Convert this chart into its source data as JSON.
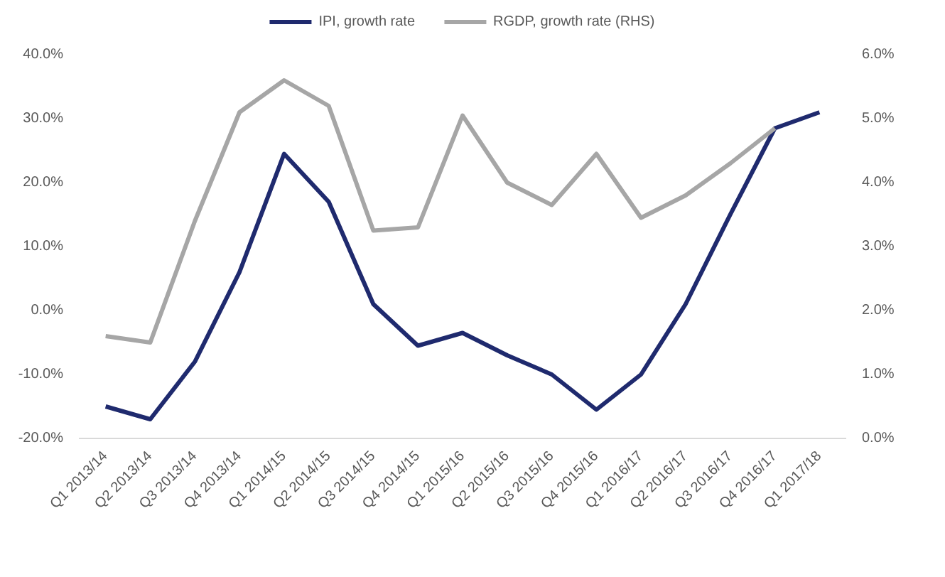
{
  "chart_data": {
    "type": "line",
    "categories": [
      "Q1 2013/14",
      "Q2 2013/14",
      "Q3 2013/14",
      "Q4 2013/14",
      "Q1 2014/15",
      "Q2 2014/15",
      "Q3 2014/15",
      "Q4 2014/15",
      "Q1 2015/16",
      "Q2 2015/16",
      "Q3 2015/16",
      "Q4 2015/16",
      "Q1 2016/17",
      "Q2 2016/17",
      "Q3 2016/17",
      "Q4 2016/17",
      "Q1 2017/18"
    ],
    "series": [
      {
        "name": "IPI, growth rate",
        "color": "#1f2a6e",
        "values": [
          -15,
          -17,
          -8,
          6,
          24.5,
          17,
          1,
          -5.5,
          -3.5,
          -7,
          -10,
          -15.5,
          -10,
          1,
          15,
          28.5,
          31
        ]
      },
      {
        "name": "RGDP, growth rate (RHS)",
        "color": "#a6a6a6",
        "axis": "y2",
        "values": [
          1.6,
          1.5,
          3.4,
          5.1,
          5.6,
          5.2,
          3.25,
          3.3,
          5.05,
          4.0,
          3.65,
          4.45,
          3.45,
          3.8,
          4.3,
          4.85,
          null
        ]
      }
    ],
    "ylim": [
      -20,
      40
    ],
    "yticks": [
      {
        "value": -20,
        "label": "-20.0%"
      },
      {
        "value": -10,
        "label": "-10.0%"
      },
      {
        "value": 0,
        "label": "0.0%"
      },
      {
        "value": 10,
        "label": "10.0%"
      },
      {
        "value": 20,
        "label": "20.0%"
      },
      {
        "value": 30,
        "label": "30.0%"
      },
      {
        "value": 40,
        "label": "40.0%"
      }
    ],
    "y2lim": [
      0,
      6
    ],
    "y2ticks": [
      {
        "value": 0,
        "label": "0.0%"
      },
      {
        "value": 1,
        "label": "1.0%"
      },
      {
        "value": 2,
        "label": "2.0%"
      },
      {
        "value": 3,
        "label": "3.0%"
      },
      {
        "value": 4,
        "label": "4.0%"
      },
      {
        "value": 5,
        "label": "5.0%"
      },
      {
        "value": 6,
        "label": "6.0%"
      }
    ],
    "legend": "top",
    "grid": false,
    "marker": "none",
    "line_style": "solid"
  }
}
